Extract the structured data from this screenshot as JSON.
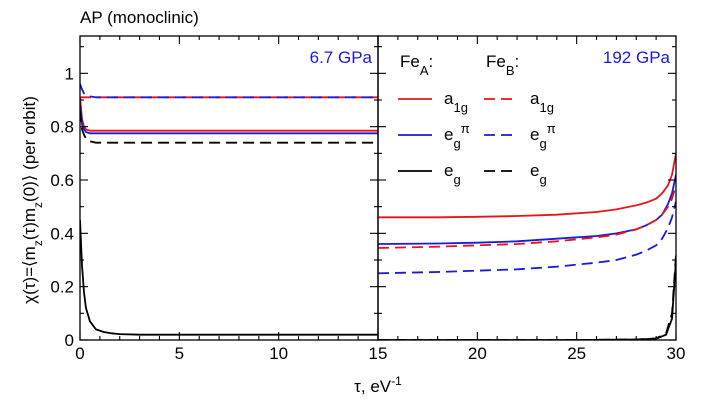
{
  "title": "AP (monoclinic)",
  "chart_data": {
    "type": "line",
    "ylabel": "χ(τ)=⟨m_z(τ)m_z(0)⟩ (per orbit)",
    "xlabel": "τ, eV^-1",
    "ylim": [
      0,
      1.14
    ],
    "yticks": [
      0,
      0.2,
      0.4,
      0.6,
      0.8,
      1
    ],
    "grid": false,
    "legend_placement": "top-right",
    "panels": [
      {
        "annotation": "6.7 GPa",
        "annotation_color": "#1a1ad6",
        "xlim": [
          0,
          15
        ],
        "xticks": [
          0,
          5,
          10,
          15
        ],
        "series": [
          {
            "name": "Fe_A a_1g",
            "color": "#e8141a",
            "dash": false,
            "x": [
              0,
              0.1,
              0.2,
              0.3,
              0.5,
              0.8,
              1.2,
              2,
              4,
              7.5,
              11,
              13,
              14,
              14.5,
              14.8,
              15
            ],
            "y": [
              0.91,
              0.83,
              0.8,
              0.79,
              0.785,
              0.785,
              0.785,
              0.785,
              0.785,
              0.785,
              0.785,
              0.785,
              0.785,
              0.785,
              0.785,
              0.785
            ]
          },
          {
            "name": "Fe_A e_g^π",
            "color": "#1a1ad6",
            "dash": false,
            "x": [
              0,
              0.1,
              0.2,
              0.3,
              0.5,
              0.8,
              1.2,
              2,
              4,
              7.5,
              11,
              13,
              14,
              14.5,
              14.8,
              15
            ],
            "y": [
              0.89,
              0.81,
              0.79,
              0.78,
              0.775,
              0.775,
              0.775,
              0.775,
              0.775,
              0.775,
              0.775,
              0.775,
              0.775,
              0.775,
              0.775,
              0.775
            ]
          },
          {
            "name": "Fe_A e_g",
            "color": "#000000",
            "dash": false,
            "x": [
              0,
              0.1,
              0.2,
              0.3,
              0.5,
              0.8,
              1.2,
              1.6,
              2,
              3,
              4,
              7.5,
              11,
              13,
              14,
              14.5,
              15
            ],
            "y": [
              0.45,
              0.28,
              0.18,
              0.12,
              0.07,
              0.04,
              0.03,
              0.025,
              0.022,
              0.02,
              0.02,
              0.02,
              0.02,
              0.02,
              0.02,
              0.02,
              0.02
            ]
          },
          {
            "name": "Fe_B a_1g",
            "color": "#e8141a",
            "dash": true,
            "x": [
              0,
              7.5,
              15
            ],
            "y": [
              0.91,
              0.91,
              0.91
            ]
          },
          {
            "name": "Fe_B e_g^π",
            "color": "#1a1ad6",
            "dash": true,
            "x": [
              0,
              0.1,
              0.2,
              0.4,
              0.8,
              2,
              7.5,
              15
            ],
            "y": [
              0.96,
              0.94,
              0.925,
              0.915,
              0.91,
              0.91,
              0.91,
              0.91
            ]
          },
          {
            "name": "Fe_B e_g",
            "color": "#000000",
            "dash": true,
            "x": [
              0,
              0.1,
              0.2,
              0.3,
              0.5,
              0.8,
              1.2,
              2,
              4,
              7.5,
              11,
              15
            ],
            "y": [
              0.86,
              0.79,
              0.77,
              0.755,
              0.745,
              0.74,
              0.74,
              0.74,
              0.74,
              0.74,
              0.74,
              0.74
            ]
          }
        ]
      },
      {
        "annotation": "192 GPa",
        "annotation_color": "#1a1ad6",
        "xlim": [
          15,
          30
        ],
        "xticks": [
          15,
          20,
          25,
          30
        ],
        "series": [
          {
            "name": "Fe_A a_1g",
            "color": "#e8141a",
            "dash": false,
            "x": [
              15,
              18,
              20,
              22,
              24,
              26,
              27,
              28,
              28.5,
              29,
              29.3,
              29.6,
              29.8,
              30
            ],
            "y": [
              0.46,
              0.46,
              0.462,
              0.465,
              0.47,
              0.48,
              0.49,
              0.505,
              0.515,
              0.53,
              0.55,
              0.58,
              0.62,
              0.7
            ]
          },
          {
            "name": "Fe_A e_g^π",
            "color": "#1a1ad6",
            "dash": false,
            "x": [
              15,
              18,
              20,
              22,
              24,
              26,
              27,
              28,
              28.5,
              29,
              29.3,
              29.6,
              29.8,
              30
            ],
            "y": [
              0.36,
              0.362,
              0.365,
              0.37,
              0.38,
              0.39,
              0.4,
              0.415,
              0.43,
              0.45,
              0.47,
              0.51,
              0.55,
              0.62
            ]
          },
          {
            "name": "Fe_A e_g",
            "color": "#000000",
            "dash": false,
            "x": [
              15,
              20,
              25,
              28,
              29,
              29.5,
              29.8,
              30
            ],
            "y": [
              0.0,
              0.0,
              0.0,
              0.002,
              0.005,
              0.02,
              0.08,
              0.3
            ]
          },
          {
            "name": "Fe_B a_1g",
            "color": "#e8141a",
            "dash": true,
            "x": [
              15,
              18,
              20,
              22,
              24,
              26,
              27,
              28,
              28.5,
              29,
              29.3,
              29.6,
              29.8,
              30
            ],
            "y": [
              0.345,
              0.35,
              0.355,
              0.36,
              0.37,
              0.385,
              0.395,
              0.415,
              0.43,
              0.45,
              0.47,
              0.5,
              0.53,
              0.58
            ]
          },
          {
            "name": "Fe_B e_g^π",
            "color": "#1a1ad6",
            "dash": true,
            "x": [
              15,
              18,
              20,
              22,
              24,
              26,
              27,
              28,
              28.5,
              29,
              29.3,
              29.6,
              29.8,
              30
            ],
            "y": [
              0.25,
              0.255,
              0.26,
              0.265,
              0.275,
              0.29,
              0.3,
              0.32,
              0.335,
              0.355,
              0.38,
              0.42,
              0.46,
              0.52
            ]
          },
          {
            "name": "Fe_B e_g",
            "color": "#000000",
            "dash": true,
            "x": [
              15,
              20,
              25,
              28,
              29,
              29.5,
              29.8,
              30
            ],
            "y": [
              0.0,
              0.0,
              0.0,
              0.002,
              0.006,
              0.025,
              0.1,
              0.32
            ]
          }
        ]
      }
    ],
    "legend": {
      "headers": [
        "Fe_A:",
        "Fe_B:"
      ],
      "rows": [
        {
          "label": "a_1g",
          "color": "#e8141a"
        },
        {
          "label": "e_g^π",
          "color": "#1a1ad6"
        },
        {
          "label": "e_g",
          "color": "#000000"
        }
      ]
    }
  }
}
